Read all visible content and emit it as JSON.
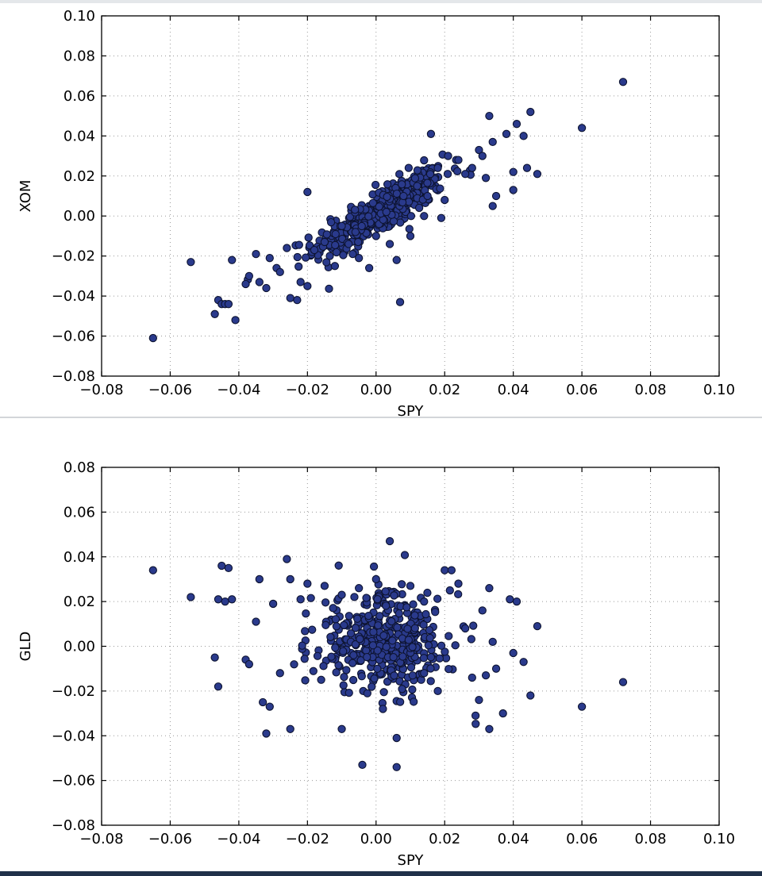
{
  "chart_data": [
    {
      "type": "scatter",
      "xlabel": "SPY",
      "ylabel": "XOM",
      "xlim": [
        -0.08,
        0.1
      ],
      "ylim": [
        -0.08,
        0.1
      ],
      "xticks": [
        "−0.08",
        "−0.06",
        "−0.04",
        "−0.02",
        "0.00",
        "0.02",
        "0.04",
        "0.06",
        "0.08",
        "0.10"
      ],
      "yticks": [
        "−0.08",
        "−0.06",
        "−0.04",
        "−0.02",
        "0.00",
        "0.02",
        "0.04",
        "0.06",
        "0.08",
        "0.10"
      ],
      "grid": true,
      "marker_color": "#2a3a8c",
      "points": [
        [
          -0.065,
          -0.061
        ],
        [
          -0.054,
          -0.023
        ],
        [
          -0.047,
          -0.049
        ],
        [
          -0.046,
          -0.042
        ],
        [
          -0.045,
          -0.044
        ],
        [
          -0.044,
          -0.044
        ],
        [
          -0.043,
          -0.044
        ],
        [
          -0.042,
          -0.022
        ],
        [
          -0.041,
          -0.052
        ],
        [
          -0.038,
          -0.034
        ],
        [
          -0.037,
          -0.03
        ],
        [
          -0.035,
          -0.019
        ],
        [
          -0.034,
          -0.033
        ],
        [
          -0.032,
          -0.036
        ],
        [
          -0.031,
          -0.021
        ],
        [
          -0.029,
          -0.026
        ],
        [
          -0.028,
          -0.028
        ],
        [
          -0.026,
          -0.016
        ],
        [
          -0.025,
          -0.041
        ],
        [
          -0.023,
          -0.042
        ],
        [
          -0.022,
          -0.033
        ],
        [
          -0.02,
          -0.035
        ],
        [
          -0.02,
          0.012
        ],
        [
          -0.018,
          -0.017
        ],
        [
          -0.015,
          -0.013
        ],
        [
          -0.012,
          -0.025
        ],
        [
          -0.008,
          -0.014
        ],
        [
          -0.005,
          -0.021
        ],
        [
          -0.002,
          -0.026
        ],
        [
          0.0,
          -0.01
        ],
        [
          0.004,
          -0.014
        ],
        [
          0.007,
          -0.043
        ],
        [
          0.006,
          -0.022
        ],
        [
          0.01,
          -0.01
        ],
        [
          0.014,
          0.0
        ],
        [
          0.016,
          0.041
        ],
        [
          0.018,
          0.024
        ],
        [
          0.021,
          0.03
        ],
        [
          0.024,
          0.028
        ],
        [
          0.026,
          0.021
        ],
        [
          0.028,
          0.024
        ],
        [
          0.03,
          0.033
        ],
        [
          0.031,
          0.03
        ],
        [
          0.032,
          0.019
        ],
        [
          0.033,
          0.05
        ],
        [
          0.034,
          0.037
        ],
        [
          0.034,
          0.005
        ],
        [
          0.035,
          0.01
        ],
        [
          0.038,
          0.041
        ],
        [
          0.04,
          0.013
        ],
        [
          0.04,
          0.022
        ],
        [
          0.041,
          0.046
        ],
        [
          0.043,
          0.04
        ],
        [
          0.044,
          0.024
        ],
        [
          0.045,
          0.052
        ],
        [
          0.047,
          0.021
        ],
        [
          0.06,
          0.044
        ],
        [
          0.072,
          0.067
        ],
        [
          0.02,
          0.008
        ],
        [
          0.019,
          -0.001
        ],
        [
          0.015,
          0.01
        ],
        [
          -0.01,
          -0.005
        ],
        [
          0.008,
          0.01
        ],
        [
          0.003,
          0.002
        ],
        [
          0.012,
          0.015
        ],
        [
          -0.006,
          -0.008
        ]
      ]
    },
    {
      "type": "scatter",
      "xlabel": "SPY",
      "ylabel": "GLD",
      "xlim": [
        -0.08,
        0.1
      ],
      "ylim": [
        -0.08,
        0.08
      ],
      "xticks": [
        "−0.08",
        "−0.06",
        "−0.04",
        "−0.02",
        "0.00",
        "0.02",
        "0.04",
        "0.06",
        "0.08",
        "0.10"
      ],
      "yticks": [
        "−0.08",
        "−0.06",
        "−0.04",
        "−0.02",
        "0.00",
        "0.02",
        "0.04",
        "0.06",
        "0.08"
      ],
      "grid": true,
      "marker_color": "#2a3a8c",
      "points": [
        [
          -0.065,
          0.034
        ],
        [
          -0.054,
          0.022
        ],
        [
          -0.047,
          -0.005
        ],
        [
          -0.046,
          0.021
        ],
        [
          -0.046,
          -0.018
        ],
        [
          -0.045,
          0.036
        ],
        [
          -0.044,
          0.02
        ],
        [
          -0.043,
          0.035
        ],
        [
          -0.042,
          0.021
        ],
        [
          -0.038,
          -0.006
        ],
        [
          -0.037,
          -0.008
        ],
        [
          -0.035,
          0.011
        ],
        [
          -0.034,
          0.03
        ],
        [
          -0.033,
          -0.025
        ],
        [
          -0.032,
          -0.039
        ],
        [
          -0.031,
          -0.027
        ],
        [
          -0.03,
          0.019
        ],
        [
          -0.028,
          -0.012
        ],
        [
          -0.026,
          0.039
        ],
        [
          -0.025,
          0.03
        ],
        [
          -0.025,
          -0.037
        ],
        [
          -0.022,
          0.021
        ],
        [
          -0.02,
          0.028
        ],
        [
          -0.015,
          0.027
        ],
        [
          -0.01,
          0.023
        ],
        [
          -0.01,
          -0.037
        ],
        [
          -0.005,
          0.026
        ],
        [
          -0.004,
          -0.053
        ],
        [
          0.0,
          0.03
        ],
        [
          0.004,
          0.047
        ],
        [
          0.006,
          -0.041
        ],
        [
          0.006,
          -0.054
        ],
        [
          0.01,
          0.027
        ],
        [
          0.014,
          0.02
        ],
        [
          0.018,
          -0.02
        ],
        [
          0.02,
          0.034
        ],
        [
          0.022,
          0.034
        ],
        [
          0.024,
          0.028
        ],
        [
          0.026,
          0.008
        ],
        [
          0.028,
          -0.014
        ],
        [
          0.029,
          -0.031
        ],
        [
          0.03,
          -0.024
        ],
        [
          0.031,
          0.016
        ],
        [
          0.032,
          -0.013
        ],
        [
          0.033,
          0.026
        ],
        [
          0.033,
          -0.037
        ],
        [
          0.034,
          0.002
        ],
        [
          0.035,
          -0.01
        ],
        [
          0.037,
          -0.03
        ],
        [
          0.039,
          0.021
        ],
        [
          0.04,
          -0.003
        ],
        [
          0.041,
          0.02
        ],
        [
          0.043,
          -0.007
        ],
        [
          0.045,
          -0.022
        ],
        [
          0.047,
          0.009
        ],
        [
          0.06,
          -0.027
        ],
        [
          0.072,
          -0.016
        ],
        [
          -0.016,
          -0.015
        ],
        [
          0.014,
          -0.012
        ],
        [
          0.002,
          -0.028
        ]
      ]
    }
  ]
}
